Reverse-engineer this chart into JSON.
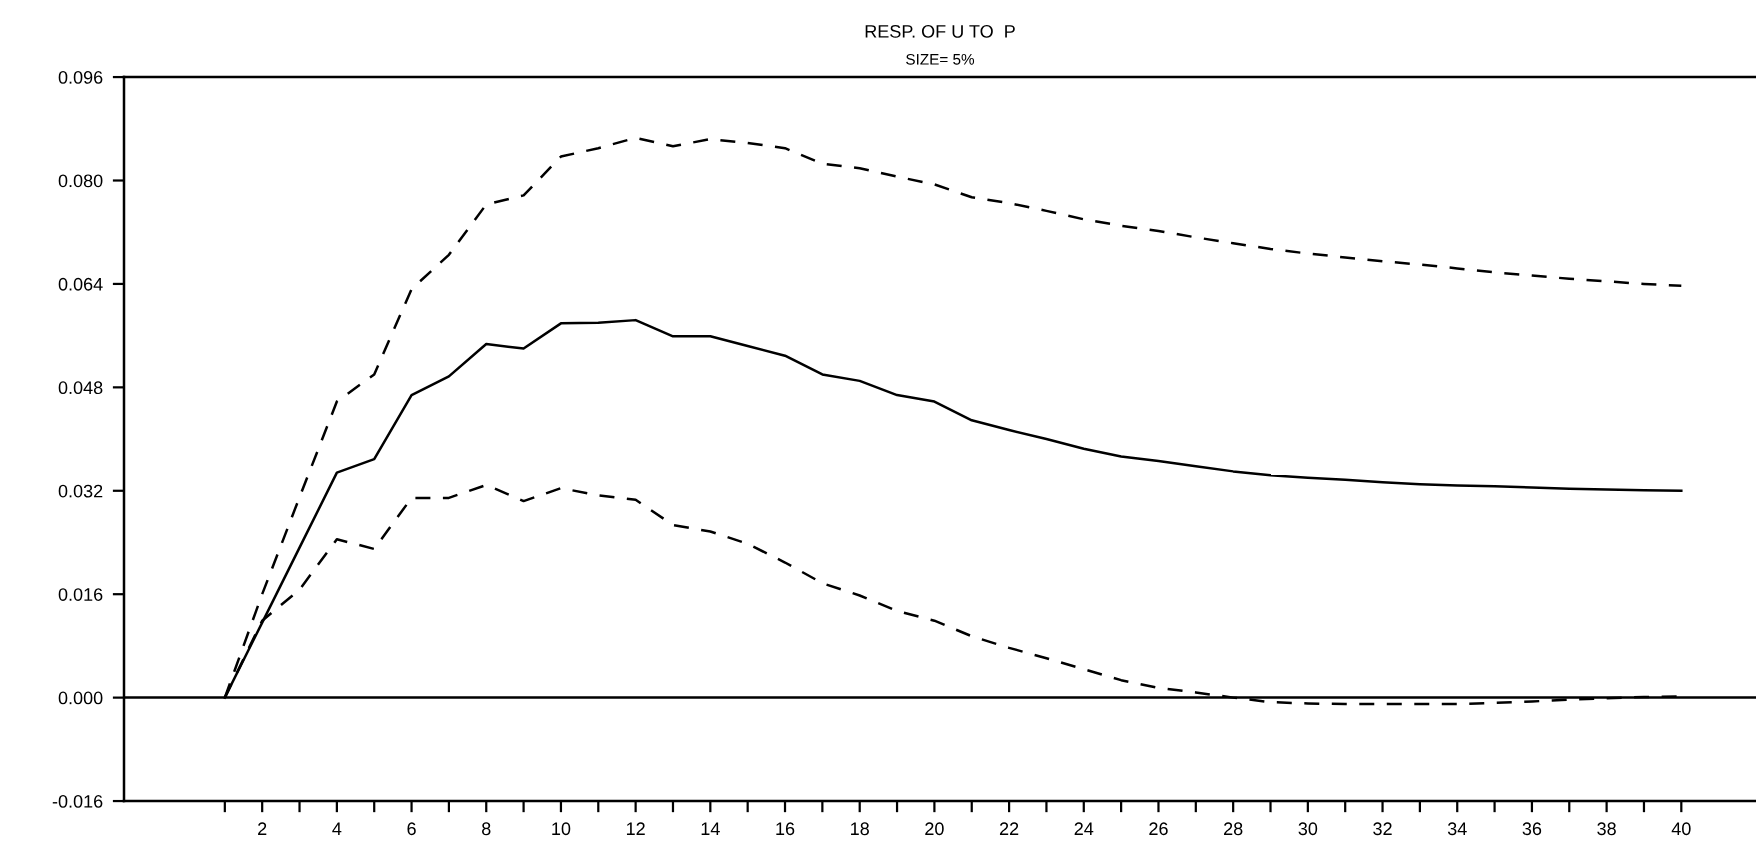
{
  "chart_data": {
    "type": "line",
    "title": "RESP. OF U TO  P",
    "subtitle": "SIZE= 5%",
    "x": [
      1,
      2,
      3,
      4,
      5,
      6,
      7,
      8,
      9,
      10,
      11,
      12,
      13,
      14,
      15,
      16,
      17,
      18,
      19,
      20,
      21,
      22,
      23,
      24,
      25,
      26,
      27,
      28,
      29,
      30,
      31,
      32,
      33,
      34,
      35,
      36,
      37,
      38,
      39,
      40
    ],
    "series": [
      {
        "color": "#000000",
        "line_style": "solid",
        "values": [
          0,
          0.0116,
          0.0232,
          0.0348,
          0.0369,
          0.0468,
          0.0497,
          0.0547,
          0.054,
          0.0579,
          0.058,
          0.0584,
          0.0559,
          0.0559,
          0.0544,
          0.0529,
          0.05,
          0.049,
          0.0468,
          0.0458,
          0.0429,
          0.0414,
          0.04,
          0.0385,
          0.0373,
          0.0366,
          0.0358,
          0.035,
          0.0344,
          0.034,
          0.0337,
          0.0333,
          0.033,
          0.0328,
          0.0327,
          0.0325,
          0.0323,
          0.0322,
          0.0321,
          0.032
        ]
      },
      {
        "color": "#000000",
        "line_style": "dashed",
        "values": [
          0,
          0.016,
          0.031,
          0.0458,
          0.05,
          0.0632,
          0.0685,
          0.0763,
          0.0777,
          0.0837,
          0.085,
          0.0866,
          0.0853,
          0.0864,
          0.0858,
          0.085,
          0.0826,
          0.0819,
          0.0806,
          0.0794,
          0.0774,
          0.0765,
          0.0753,
          0.074,
          0.073,
          0.0722,
          0.0712,
          0.0703,
          0.0694,
          0.0687,
          0.0681,
          0.0675,
          0.067,
          0.0664,
          0.0658,
          0.0653,
          0.0648,
          0.0644,
          0.064,
          0.0637
        ]
      },
      {
        "color": "#000000",
        "line_style": "dashed",
        "values": [
          0,
          0.0119,
          0.0167,
          0.0245,
          0.023,
          0.0309,
          0.0309,
          0.0329,
          0.0304,
          0.0324,
          0.0313,
          0.0306,
          0.0267,
          0.0257,
          0.0238,
          0.0209,
          0.0177,
          0.0158,
          0.0134,
          0.0119,
          0.0095,
          0.0077,
          0.0061,
          0.0044,
          0.0027,
          0.0015,
          0.0008,
          0.0,
          -0.0007,
          -0.0009,
          -0.001,
          -0.001,
          -0.001,
          -0.001,
          -0.0008,
          -0.0006,
          -0.0003,
          -0.0001,
          0.0001,
          0.0002
        ]
      }
    ],
    "xlim": [
      -1.7,
      42
    ],
    "xticks": [
      {
        "value": 1,
        "label": null
      },
      2,
      {
        "value": 3,
        "label": null
      },
      4,
      {
        "value": 5,
        "label": null
      },
      6,
      {
        "value": 7,
        "label": null
      },
      8,
      {
        "value": 9,
        "label": null
      },
      10,
      {
        "value": 11,
        "label": null
      },
      12,
      {
        "value": 13,
        "label": null
      },
      14,
      {
        "value": 15,
        "label": null
      },
      16,
      {
        "value": 17,
        "label": null
      },
      18,
      {
        "value": 19,
        "label": null
      },
      20,
      {
        "value": 21,
        "label": null
      },
      22,
      {
        "value": 23,
        "label": null
      },
      24,
      {
        "value": 25,
        "label": null
      },
      26,
      {
        "value": 27,
        "label": null
      },
      28,
      {
        "value": 29,
        "label": null
      },
      30,
      {
        "value": 31,
        "label": null
      },
      32,
      {
        "value": 33,
        "label": null
      },
      34,
      {
        "value": 35,
        "label": null
      },
      36,
      {
        "value": 37,
        "label": null
      },
      38,
      {
        "value": 39,
        "label": null
      },
      40
    ],
    "ylim": [
      -0.016,
      0.096
    ],
    "yticks": [
      {
        "value": -0.016,
        "label": "-0.016"
      },
      {
        "value": 0,
        "label": "0.000"
      },
      {
        "value": 0.016,
        "label": "0.016"
      },
      {
        "value": 0.032,
        "label": "0.032"
      },
      {
        "value": 0.048,
        "label": "0.048"
      },
      {
        "value": 0.064,
        "label": "0.064"
      },
      {
        "value": 0.08,
        "label": "0.080"
      },
      {
        "value": 0.096,
        "label": "0.096"
      }
    ],
    "ref_lines": [
      {
        "axis": "y",
        "value": 0,
        "color": "#000000"
      }
    ],
    "grid": false,
    "legend": false
  }
}
